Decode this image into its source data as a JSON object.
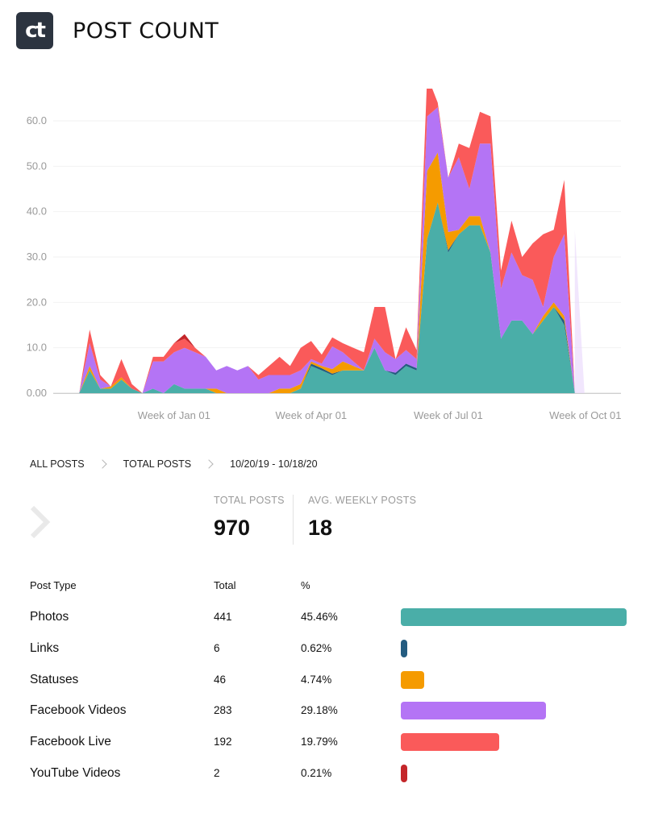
{
  "header": {
    "logo_text": "ct",
    "logo_bg": "#2c3440",
    "title": "POST COUNT"
  },
  "chart_data": {
    "type": "area",
    "stacked": true,
    "x_tick_labels": [
      "Week of Jan 01",
      "Week of Apr 01",
      "Week of Jul 01",
      "Week of Oct 01"
    ],
    "x_tick_index": [
      11,
      24,
      37,
      50
    ],
    "y_tick_labels": [
      "0.00",
      "10.0",
      "20.0",
      "30.0",
      "40.0",
      "50.0",
      "60.0"
    ],
    "ylim": [
      0,
      65
    ],
    "grid": "horizontal",
    "legend": "none",
    "weeks": 53,
    "series": [
      {
        "key": "photos",
        "color": "#4aaea8",
        "values": [
          0,
          0,
          0,
          5,
          1,
          1,
          3,
          1,
          0,
          1,
          0,
          2,
          1,
          1,
          1,
          0,
          0,
          0,
          0,
          0,
          0,
          0,
          0,
          1,
          6,
          5,
          4,
          5,
          5,
          5,
          10,
          5,
          4,
          6,
          5,
          34,
          42,
          31,
          35,
          37,
          37,
          31,
          12,
          16,
          16,
          13,
          16,
          19,
          15,
          0,
          0,
          0,
          0
        ]
      },
      {
        "key": "links",
        "color": "#245c80",
        "values": [
          0,
          0,
          0,
          0,
          0,
          0,
          0,
          0,
          0,
          0,
          0,
          0,
          0,
          0,
          0,
          0,
          0,
          0,
          0,
          0,
          0,
          0,
          0,
          0,
          0.5,
          0.5,
          0.3,
          0,
          0,
          0,
          0,
          0,
          0.5,
          0.5,
          0.5,
          0,
          0,
          0.5,
          0,
          0,
          0,
          0,
          0,
          0,
          0,
          0,
          0,
          0,
          1,
          0,
          0,
          0,
          0
        ]
      },
      {
        "key": "statuses",
        "color": "#f59b00",
        "values": [
          0,
          0,
          0,
          1,
          0,
          0.5,
          0.5,
          0,
          0,
          0,
          0,
          0,
          0,
          0,
          0,
          1,
          0,
          0,
          0,
          0,
          0,
          1,
          1,
          1,
          0.5,
          0.5,
          1,
          2,
          1,
          0,
          0,
          0,
          0,
          0,
          0,
          15,
          11,
          4,
          1,
          2,
          2,
          0,
          0,
          0,
          0,
          0,
          1,
          1,
          1,
          0,
          0,
          0,
          0
        ]
      },
      {
        "key": "facebook_videos",
        "color": "#b474f5",
        "values": [
          0,
          0,
          0,
          5,
          2,
          0,
          0,
          0,
          0,
          6,
          7,
          7,
          9,
          8,
          7,
          4,
          6,
          5,
          6,
          3,
          4,
          3,
          3,
          3,
          0.5,
          0.5,
          5,
          2,
          1,
          0,
          2,
          4,
          3,
          3,
          2,
          12,
          10,
          12,
          16,
          6,
          16,
          24,
          11,
          15,
          10,
          12,
          2,
          10,
          18,
          0,
          0,
          0,
          0
        ]
      },
      {
        "key": "facebook_live",
        "color": "#fa5a5a",
        "values": [
          0,
          0,
          0,
          3,
          1,
          0,
          4,
          1,
          0,
          1,
          1,
          2,
          2,
          1,
          0,
          0,
          0,
          0,
          0,
          1,
          2,
          4,
          2,
          5,
          4,
          2,
          2,
          2,
          3,
          4,
          7,
          10,
          0,
          5,
          2,
          9,
          1,
          0,
          3,
          9,
          7,
          6,
          4,
          7,
          4,
          8,
          16,
          6,
          12,
          0,
          0,
          0,
          0
        ]
      },
      {
        "key": "youtube_videos",
        "color": "#c4262a",
        "values": [
          0,
          0,
          0,
          0,
          0,
          0,
          0,
          0,
          0,
          0,
          0,
          0,
          1,
          0,
          0,
          0,
          0,
          0,
          0,
          0,
          0,
          0,
          0,
          0,
          0,
          0,
          0,
          0,
          0,
          0,
          0,
          0,
          0,
          0,
          0,
          0,
          0,
          0,
          0,
          0,
          0,
          0,
          0,
          0,
          0,
          0,
          0,
          0,
          0,
          0,
          0,
          0,
          0
        ]
      }
    ]
  },
  "breadcrumb": {
    "items": [
      "ALL POSTS",
      "TOTAL POSTS",
      "10/20/19 - 10/18/20"
    ]
  },
  "stats": {
    "total_label": "TOTAL POSTS",
    "total_value": "970",
    "avg_label": "AVG. WEEKLY POSTS",
    "avg_value": "18"
  },
  "table": {
    "headers": {
      "type": "Post Type",
      "total": "Total",
      "pct": "%"
    },
    "rows": [
      {
        "type": "Photos",
        "total": "441",
        "pct": "45.46%",
        "share": 45.46,
        "color": "#4aaea8"
      },
      {
        "type": "Links",
        "total": "6",
        "pct": "0.62%",
        "share": 0.62,
        "color": "#245c80"
      },
      {
        "type": "Statuses",
        "total": "46",
        "pct": "4.74%",
        "share": 4.74,
        "color": "#f59b00"
      },
      {
        "type": "Facebook Videos",
        "total": "283",
        "pct": "29.18%",
        "share": 29.18,
        "color": "#b474f5"
      },
      {
        "type": "Facebook Live",
        "total": "192",
        "pct": "19.79%",
        "share": 19.79,
        "color": "#fa5a5a"
      },
      {
        "type": "YouTube Videos",
        "total": "2",
        "pct": "0.21%",
        "share": 0.21,
        "color": "#c4262a"
      }
    ]
  }
}
